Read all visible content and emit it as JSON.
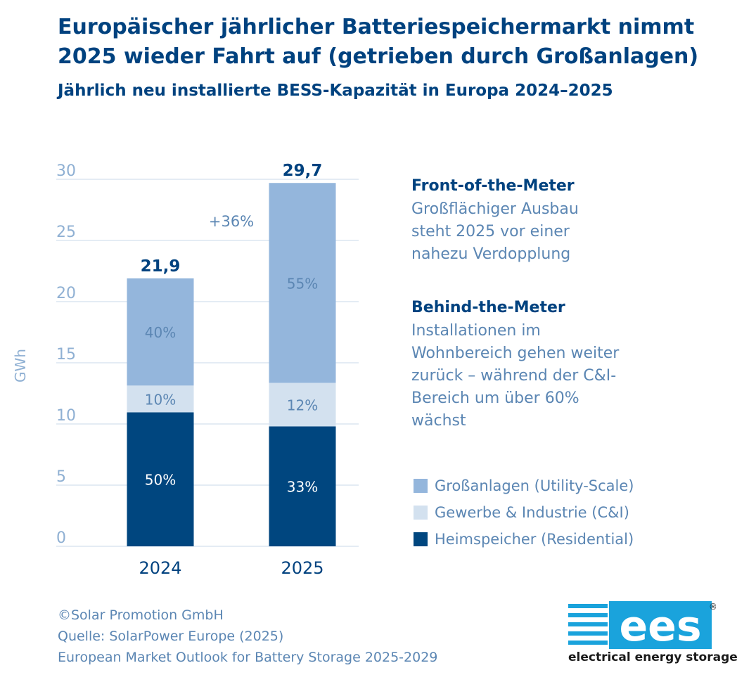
{
  "title": "Europäischer jährlicher Batteriespeichermarkt nimmt 2025 wieder Fahrt auf (getrieben durch Großanlagen)",
  "subtitle": "Jährlich neu installierte BESS-Kapazität in Europa 2024–2025",
  "colors": {
    "utility": "#94b6dc",
    "ci": "#d3e1ef",
    "residential": "#00467f",
    "text_dark": "#00427f",
    "text_light": "#5b86b3",
    "grid": "#c9d9ea",
    "logo_bg": "#1aa3dc"
  },
  "chart_data": {
    "type": "bar",
    "stacked": true,
    "categories": [
      "2024",
      "2025"
    ],
    "ylabel": "GWh",
    "ylim": [
      0,
      30
    ],
    "yticks": [
      "0",
      "5",
      "10",
      "15",
      "20",
      "25",
      "30"
    ],
    "grid": true,
    "series": [
      {
        "name": "Heimspeicher (Residential)",
        "key": "residential",
        "values": [
          10.95,
          9.8
        ],
        "labels": [
          "50%",
          "33%"
        ]
      },
      {
        "name": "Gewerbe & Industrie (C&I)",
        "key": "ci",
        "values": [
          2.19,
          3.56
        ],
        "labels": [
          "10%",
          "12%"
        ]
      },
      {
        "name": "Großanlagen (Utility-Scale)",
        "key": "utility",
        "values": [
          8.76,
          16.34
        ],
        "labels": [
          "40%",
          "55%"
        ]
      }
    ],
    "totals": [
      21.9,
      29.7
    ],
    "total_labels": [
      "21,9",
      "29,7"
    ],
    "growth_label": "+36%"
  },
  "annotations": {
    "ftm_title": "Front-of-the-Meter",
    "ftm_text": "Großflächiger Ausbau steht 2025 vor einer nahezu Verdopplung",
    "btm_title": "Behind-the-Meter",
    "btm_text": "Installationen im Wohnbereich gehen weiter zurück – während der C&I-Bereich um über 60% wächst"
  },
  "legend": [
    {
      "label": "Großanlagen (Utility-Scale)",
      "key": "utility"
    },
    {
      "label": "Gewerbe & Industrie (C&I)",
      "key": "ci"
    },
    {
      "label": "Heimspeicher (Residential)",
      "key": "residential"
    }
  ],
  "footer": {
    "copyright": "©Solar Promotion GmbH",
    "source": "Quelle: SolarPower Europe (2025)",
    "report": "European Market Outlook for Battery Storage 2025-2029"
  },
  "logo": {
    "mark": "ees",
    "name": "electrical energy storage",
    "registered": "®"
  }
}
